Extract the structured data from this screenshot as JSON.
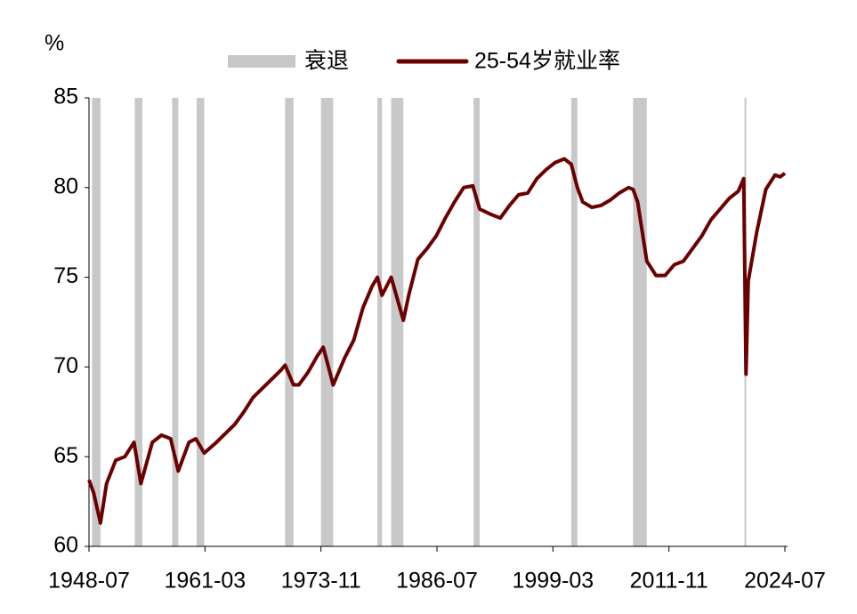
{
  "chart_data": {
    "type": "line",
    "y_label": "%",
    "recessions": {
      "name": "衰退",
      "color": "#c8c8c8",
      "periods": [
        [
          "1948-11",
          "1949-10"
        ],
        [
          "1953-07",
          "1954-05"
        ],
        [
          "1957-08",
          "1958-04"
        ],
        [
          "1960-04",
          "1961-02"
        ],
        [
          "1969-12",
          "1970-11"
        ],
        [
          "1973-11",
          "1975-03"
        ],
        [
          "1980-01",
          "1980-07"
        ],
        [
          "1981-07",
          "1982-11"
        ],
        [
          "1990-07",
          "1991-03"
        ],
        [
          "2001-03",
          "2001-11"
        ],
        [
          "2007-12",
          "2009-06"
        ],
        [
          "2020-02",
          "2020-04"
        ]
      ]
    },
    "series": [
      {
        "name": "25-54岁就业率",
        "color": "#6b0000",
        "x": [
          "1948-07",
          "1949-01",
          "1949-10",
          "1950-06",
          "1951-06",
          "1952-06",
          "1953-06",
          "1954-03",
          "1955-06",
          "1956-06",
          "1957-06",
          "1958-04",
          "1959-06",
          "1960-03",
          "1961-02",
          "1962-06",
          "1963-06",
          "1964-06",
          "1965-06",
          "1966-06",
          "1967-06",
          "1968-06",
          "1969-06",
          "1969-12",
          "1970-11",
          "1971-06",
          "1972-06",
          "1973-06",
          "1974-02",
          "1975-03",
          "1976-06",
          "1977-06",
          "1978-06",
          "1979-06",
          "1980-01",
          "1980-07",
          "1981-07",
          "1982-11",
          "1983-06",
          "1984-06",
          "1985-06",
          "1986-06",
          "1987-06",
          "1988-06",
          "1989-06",
          "1990-06",
          "1991-03",
          "1992-06",
          "1993-06",
          "1994-06",
          "1995-06",
          "1996-06",
          "1997-06",
          "1998-06",
          "1999-06",
          "2000-06",
          "2001-03",
          "2001-11",
          "2002-06",
          "2003-06",
          "2004-06",
          "2005-06",
          "2006-06",
          "2007-06",
          "2007-12",
          "2008-06",
          "2009-06",
          "2010-06",
          "2011-06",
          "2012-06",
          "2013-06",
          "2014-06",
          "2015-06",
          "2016-06",
          "2017-06",
          "2018-06",
          "2019-06",
          "2020-01",
          "2020-04",
          "2020-07",
          "2021-06",
          "2022-06",
          "2023-06",
          "2024-01",
          "2024-07"
        ],
        "values": [
          63.7,
          63.0,
          61.3,
          63.5,
          64.8,
          65.0,
          65.8,
          63.5,
          65.8,
          66.2,
          66.0,
          64.2,
          65.8,
          66.0,
          65.2,
          65.8,
          66.3,
          66.8,
          67.5,
          68.3,
          68.8,
          69.3,
          69.8,
          70.1,
          69.0,
          69.0,
          69.7,
          70.6,
          71.1,
          69.0,
          70.5,
          71.5,
          73.3,
          74.5,
          75.0,
          74.0,
          75.0,
          72.6,
          74.0,
          76.0,
          76.6,
          77.3,
          78.3,
          79.2,
          80.0,
          80.1,
          78.8,
          78.5,
          78.3,
          79.0,
          79.6,
          79.7,
          80.5,
          81.0,
          81.4,
          81.6,
          81.3,
          80.0,
          79.2,
          78.9,
          79.0,
          79.3,
          79.7,
          80.0,
          79.9,
          79.2,
          75.9,
          75.1,
          75.1,
          75.7,
          75.9,
          76.6,
          77.3,
          78.2,
          78.8,
          79.4,
          79.8,
          80.5,
          69.6,
          74.8,
          77.5,
          79.9,
          80.7,
          80.6,
          80.8
        ]
      }
    ],
    "xlim": [
      "1948-07",
      "2024-07"
    ],
    "xticks": [
      "1948-07",
      "1961-03",
      "1973-11",
      "1986-07",
      "1999-03",
      "2011-11",
      "2024-07"
    ],
    "ylim": [
      60,
      85
    ],
    "yticks": [
      60,
      65,
      70,
      75,
      80,
      85
    ],
    "grid": false
  }
}
